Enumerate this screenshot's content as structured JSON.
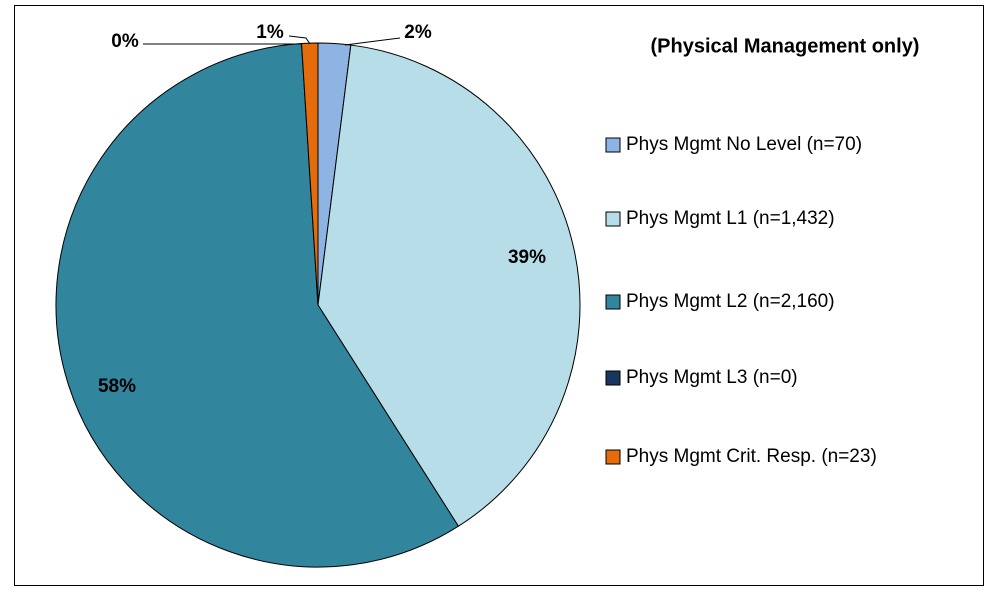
{
  "chart_data": {
    "type": "pie",
    "title": "(Physical Management only)",
    "categories": [
      "Phys Mgmt No Level (n=70)",
      "Phys Mgmt L1 (n=1,432)",
      "Phys Mgmt L2 (n=2,160)",
      "Phys Mgmt L3 (n=0)",
      "Phys Mgmt Crit. Resp. (n=23)"
    ],
    "values": [
      2,
      39,
      58,
      0,
      1
    ],
    "value_labels": [
      "2%",
      "39%",
      "58%",
      "0%",
      "1%"
    ],
    "colors": [
      "#8eb4e3",
      "#b7dde8",
      "#31859c",
      "#17375e",
      "#e46c0a"
    ],
    "legend": "right"
  }
}
